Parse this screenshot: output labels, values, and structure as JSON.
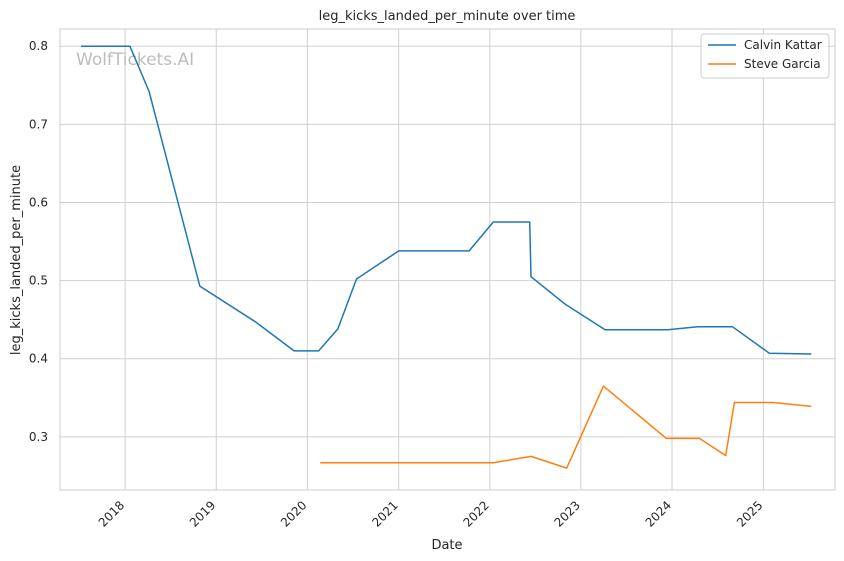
{
  "chart_data": {
    "type": "line",
    "title": "leg_kicks_landed_per_minute over time",
    "xlabel": "Date",
    "ylabel": "leg_kicks_landed_per_minute",
    "watermark": "WolfTickets.AI",
    "x_ticks": [
      "2018",
      "2019",
      "2020",
      "2021",
      "2022",
      "2023",
      "2024",
      "2025"
    ],
    "y_ticks": [
      "0.3",
      "0.4",
      "0.5",
      "0.6",
      "0.7",
      "0.8"
    ],
    "xlim": [
      "2017-04-15",
      "2025-10-15"
    ],
    "ylim": [
      0.232,
      0.822
    ],
    "grid": true,
    "legend_position": "top-right",
    "series": [
      {
        "name": "Calvin Kattar",
        "color": "#1f77b4",
        "points": [
          [
            "2017-07-08",
            0.8
          ],
          [
            "2018-01-20",
            0.8
          ],
          [
            "2018-04-07",
            0.742
          ],
          [
            "2018-10-27",
            0.493
          ],
          [
            "2019-06-08",
            0.447
          ],
          [
            "2019-11-09",
            0.41
          ],
          [
            "2020-02-15",
            0.41
          ],
          [
            "2020-05-02",
            0.438
          ],
          [
            "2020-07-16",
            0.502
          ],
          [
            "2021-01-01",
            0.538
          ],
          [
            "2021-10-10",
            0.538
          ],
          [
            "2022-01-15",
            0.575
          ],
          [
            "2022-06-10",
            0.575
          ],
          [
            "2022-06-15",
            0.505
          ],
          [
            "2022-10-29",
            0.47
          ],
          [
            "2023-04-08",
            0.437
          ],
          [
            "2023-12-15",
            0.437
          ],
          [
            "2024-04-13",
            0.441
          ],
          [
            "2024-08-30",
            0.441
          ],
          [
            "2025-01-25",
            0.407
          ],
          [
            "2025-07-12",
            0.406
          ]
        ]
      },
      {
        "name": "Steve Garcia",
        "color": "#ff7f0e",
        "points": [
          [
            "2020-02-22",
            0.267
          ],
          [
            "2022-01-15",
            0.267
          ],
          [
            "2022-06-15",
            0.275
          ],
          [
            "2022-11-05",
            0.26
          ],
          [
            "2023-04-01",
            0.365
          ],
          [
            "2023-12-09",
            0.298
          ],
          [
            "2024-04-20",
            0.298
          ],
          [
            "2024-08-03",
            0.276
          ],
          [
            "2024-09-07",
            0.344
          ],
          [
            "2025-02-08",
            0.344
          ],
          [
            "2025-07-12",
            0.339
          ]
        ]
      }
    ]
  }
}
